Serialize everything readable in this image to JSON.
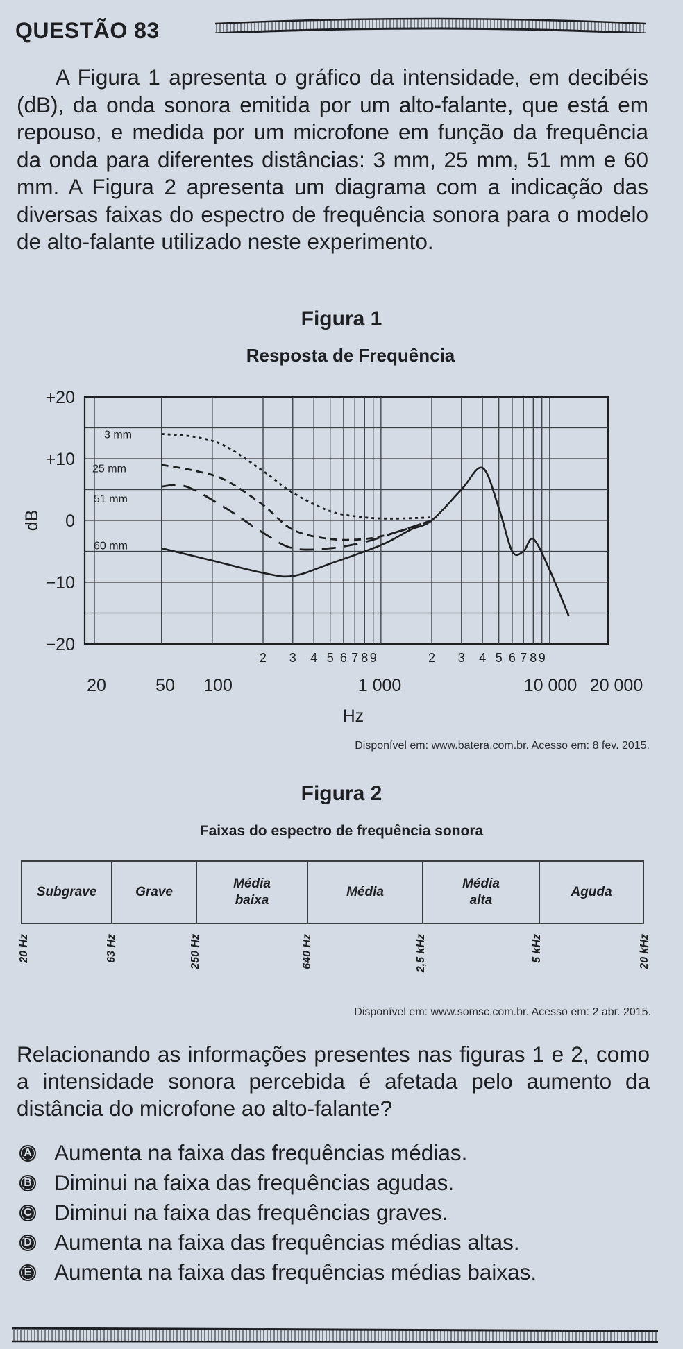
{
  "question": {
    "number_label": "QUESTÃO 83",
    "intro_lead": "A Figura 1 apresenta o gráfico da intensidade, em decibéis (dB), da onda sonora emitida por um alto-falante, que está em repouso, e medida por um microfone em função da frequência da onda para diferentes distâncias: 3 mm, 25 mm, 51 mm e 60 mm. A Figura 2 apresenta um diagrama com a indicação das diversas faixas do espectro de frequência sonora para o modelo de alto-falante utilizado neste experimento.",
    "prompt": "Relacionando as informações presentes nas figuras 1 e 2, como a intensidade sonora percebida é afetada pelo aumento da distância do microfone ao alto-falante?",
    "options": [
      {
        "letter": "A",
        "text": "Aumenta na faixa das frequências médias."
      },
      {
        "letter": "B",
        "text": "Diminui na faixa das frequências agudas."
      },
      {
        "letter": "C",
        "text": "Diminui na faixa das frequências graves."
      },
      {
        "letter": "D",
        "text": "Aumenta na faixa das frequências médias altas."
      },
      {
        "letter": "E",
        "text": "Aumenta na faixa das frequências médias baixas."
      }
    ]
  },
  "figure1": {
    "label": "Figura 1",
    "source": "Disponível em: www.batera.com.br. Acesso em: 8 fev. 2015."
  },
  "figure2": {
    "label": "Figura 2",
    "title": "Faixas do espectro de frequência sonora",
    "bands": [
      {
        "name": "Subgrave",
        "from": "20 Hz",
        "to": "63 Hz"
      },
      {
        "name": "Grave",
        "from": "63 Hz",
        "to": "250 Hz"
      },
      {
        "name": "Média baixa",
        "from": "250 Hz",
        "to": "640 Hz"
      },
      {
        "name": "Média",
        "from": "640 Hz",
        "to": "2,5 kHz"
      },
      {
        "name": "Média alta",
        "from": "2,5 kHz",
        "to": "5 kHz"
      },
      {
        "name": "Aguda",
        "from": "5 kHz",
        "to": "20 kHz"
      }
    ],
    "ticks": [
      "20 Hz",
      "63 Hz",
      "250 Hz",
      "640 Hz",
      "2,5 kHz",
      "5 kHz",
      "20 kHz"
    ],
    "source": "Disponível em: www.somsc.com.br. Acesso em: 2 abr. 2015."
  },
  "chart_data": {
    "type": "line",
    "title": "Resposta de Frequência",
    "xlabel": "Hz",
    "ylabel": "dB",
    "xscale": "log",
    "xlim": [
      20,
      20000
    ],
    "ylim": [
      -20,
      20
    ],
    "grid": true,
    "x_major_tick_labels": [
      "20",
      "50",
      "100",
      "1 000",
      "10 000",
      "20 000"
    ],
    "x_minor_tick_labels": [
      "2",
      "3",
      "4",
      "5",
      "6",
      "7",
      "8",
      "9",
      "2",
      "3",
      "4",
      "5",
      "6",
      "7",
      "8",
      "9"
    ],
    "y_tick_labels": [
      "+20",
      "+10",
      "0",
      "−10",
      "−20"
    ],
    "series": [
      {
        "name": "3 mm",
        "style": "dotted",
        "x": [
          50,
          80,
          120,
          200,
          300,
          500,
          800,
          1200,
          2000
        ],
        "y": [
          14,
          13.5,
          12,
          8,
          4.5,
          1.5,
          0.5,
          0.3,
          0.5
        ]
      },
      {
        "name": "25 mm",
        "style": "dashed",
        "x": [
          50,
          80,
          120,
          200,
          300,
          500,
          800,
          1200,
          2000
        ],
        "y": [
          9,
          8,
          6.5,
          2.5,
          -1.5,
          -3,
          -3,
          -2,
          0
        ]
      },
      {
        "name": "51 mm",
        "style": "long-dashed",
        "x": [
          50,
          70,
          120,
          200,
          300,
          500,
          800,
          1200,
          2000
        ],
        "y": [
          5.5,
          5.5,
          2,
          -2,
          -4.5,
          -4.5,
          -3.5,
          -2,
          0
        ]
      },
      {
        "name": "60 mm",
        "style": "solid",
        "x": [
          50,
          100,
          200,
          300,
          500,
          1000,
          1500,
          2000,
          3000,
          4000,
          5000,
          6000,
          7000,
          8000,
          10000,
          13000
        ],
        "y": [
          -4.5,
          -6.5,
          -8.5,
          -9,
          -7,
          -4,
          -1.5,
          0,
          5,
          8.5,
          2,
          -5,
          -5,
          -3,
          -8,
          -15.5
        ]
      }
    ],
    "annotations": [
      "3 mm",
      "25 mm",
      "51 mm",
      "60 mm"
    ]
  },
  "colors": {
    "paper": "#d4dbe4",
    "ink": "#1d1f22",
    "grid": "#3a3d42"
  }
}
